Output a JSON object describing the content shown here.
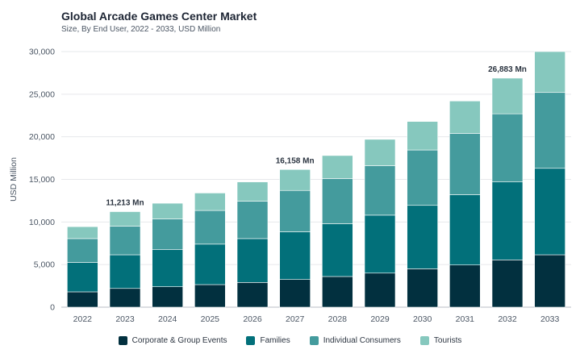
{
  "title": "Global Arcade Games Center Market",
  "subtitle": "Size, By End User, 2022 - 2033, USD Million",
  "chart_data": {
    "type": "bar",
    "stacked": true,
    "ylabel": "USD Million",
    "xlabel": "",
    "ylim": [
      0,
      30000
    ],
    "yticks": [
      0,
      5000,
      10000,
      15000,
      20000,
      25000,
      30000
    ],
    "ytick_labels": [
      "0",
      "5,000",
      "10,000",
      "15,000",
      "20,000",
      "25,000",
      "30,000"
    ],
    "categories": [
      "2022",
      "2023",
      "2024",
      "2025",
      "2026",
      "2027",
      "2028",
      "2029",
      "2030",
      "2031",
      "2032",
      "2033"
    ],
    "series": [
      {
        "name": "Corporate & Group Events",
        "color": "#02303f",
        "values": [
          1800,
          2200,
          2400,
          2650,
          2900,
          3250,
          3600,
          4000,
          4500,
          4950,
          5550,
          6150
        ]
      },
      {
        "name": "Families",
        "color": "#02707a",
        "values": [
          3450,
          3950,
          4350,
          4750,
          5150,
          5600,
          6200,
          6800,
          7450,
          8250,
          9150,
          10150
        ]
      },
      {
        "name": "Individual Consumers",
        "color": "#449b9d",
        "values": [
          2800,
          3350,
          3600,
          3950,
          4400,
          4850,
          5300,
          5800,
          6500,
          7200,
          8000,
          8900
        ]
      },
      {
        "name": "Tourists",
        "color": "#86c8be",
        "values": [
          1400,
          1713,
          1850,
          2050,
          2250,
          2458,
          2700,
          3100,
          3350,
          3800,
          4183,
          4800
        ]
      }
    ],
    "annotations": [
      {
        "category": "2023",
        "text": "11,213 Mn"
      },
      {
        "category": "2027",
        "text": "16,158 Mn"
      },
      {
        "category": "2032",
        "text": "26,883 Mn"
      }
    ],
    "legend_position": "bottom",
    "grid": true
  }
}
